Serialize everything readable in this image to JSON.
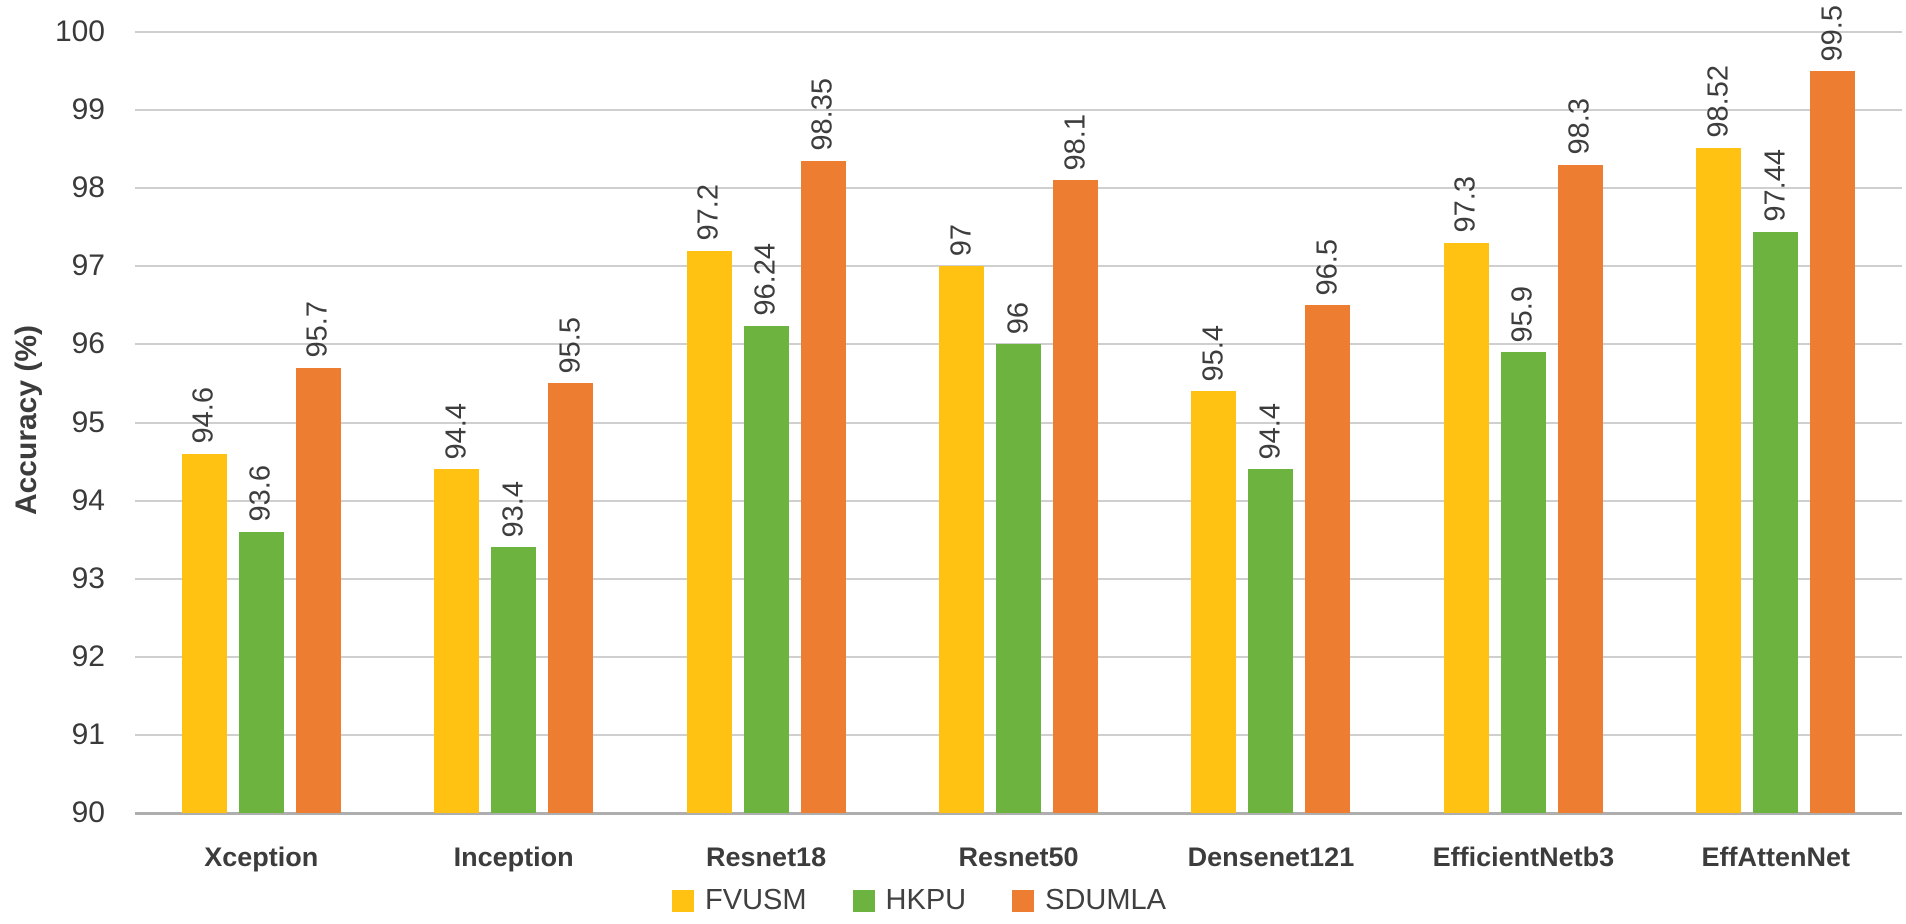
{
  "chart_data": {
    "type": "bar",
    "title": "",
    "ylabel": "Accuracy (%)",
    "xlabel": "",
    "ylim": [
      90,
      100
    ],
    "ytick_step": 1,
    "yticks": [
      "100",
      "99",
      "98",
      "97",
      "96",
      "95",
      "94",
      "93",
      "92",
      "91",
      "90"
    ],
    "grid": true,
    "legend_position": "bottom-center",
    "data_label_rotation": "90deg-bottom-to-top",
    "categories": [
      "Xception",
      "Inception",
      "Resnet18",
      "Resnet50",
      "Densenet121",
      "EfficientNetb3",
      "EffAttenNet"
    ],
    "series": [
      {
        "name": "FVUSM",
        "color": "#FFC112",
        "values": [
          94.6,
          94.4,
          97.2,
          97,
          95.4,
          97.3,
          98.52
        ],
        "labels": [
          "94.6",
          "94.4",
          "97.2",
          "97",
          "95.4",
          "97.3",
          "98.52"
        ]
      },
      {
        "name": "HKPU",
        "color": "#6CB33F",
        "values": [
          93.6,
          93.4,
          96.24,
          96,
          94.4,
          95.9,
          97.44
        ],
        "labels": [
          "93.6",
          "93.4",
          "96.24",
          "96",
          "94.4",
          "95.9",
          "97.44"
        ]
      },
      {
        "name": "SDUMLA",
        "color": "#ED7D31",
        "values": [
          95.7,
          95.5,
          98.35,
          98.1,
          96.5,
          98.3,
          99.5
        ],
        "labels": [
          "95.7",
          "95.5",
          "98.35",
          "98.1",
          "96.5",
          "98.3",
          "99.5"
        ]
      }
    ]
  }
}
